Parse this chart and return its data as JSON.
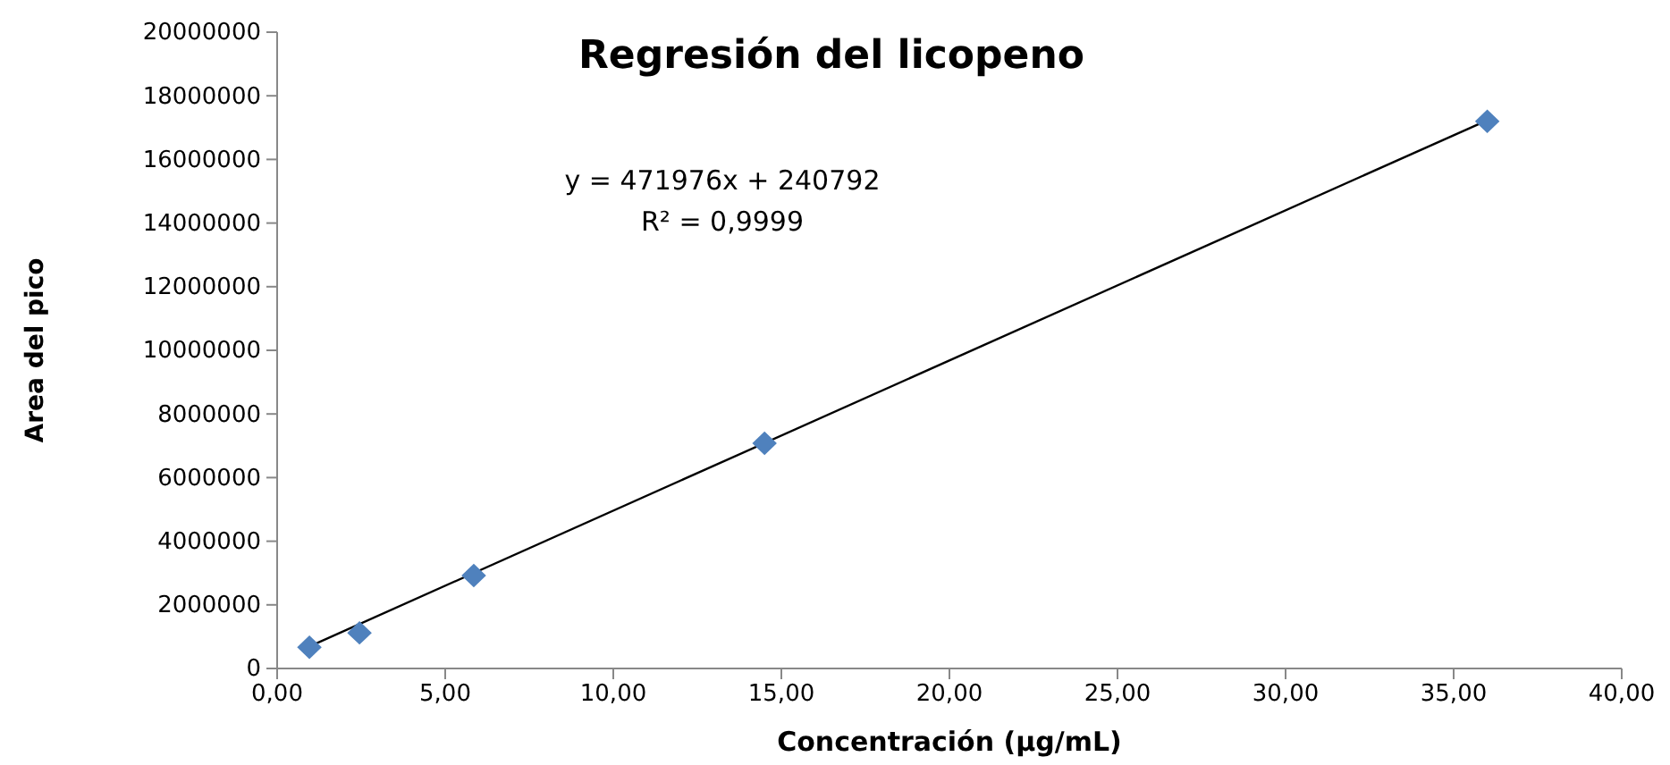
{
  "chart_data": {
    "type": "scatter",
    "title": "Regresión del licopeno",
    "xlabel": "Concentración (µg/mL)",
    "ylabel": "Area del pico",
    "annotations": [
      "y = 471976x + 240792",
      "R² = 0,9999"
    ],
    "grid": false,
    "series": [
      {
        "marker": "diamond",
        "color": "#4f81bd",
        "x": [
          0.96,
          2.45,
          5.85,
          14.5,
          36.0
        ],
        "values": [
          670000,
          1120000,
          2920000,
          7080000,
          17200000
        ]
      },
      {
        "type": "line",
        "color": "#000000",
        "x": [
          0.96,
          36.0
        ],
        "values": [
          694000,
          17232000
        ]
      }
    ],
    "xlim": [
      0,
      40
    ],
    "ylim": [
      0,
      20000000
    ],
    "xticks": [
      {
        "value": 0,
        "label": "0,00"
      },
      {
        "value": 5,
        "label": "5,00"
      },
      {
        "value": 10,
        "label": "10,00"
      },
      {
        "value": 15,
        "label": "15,00"
      },
      {
        "value": 20,
        "label": "20,00"
      },
      {
        "value": 25,
        "label": "25,00"
      },
      {
        "value": 30,
        "label": "30,00"
      },
      {
        "value": 35,
        "label": "35,00"
      },
      {
        "value": 40,
        "label": "40,00"
      }
    ],
    "yticks": [
      0,
      2000000,
      4000000,
      6000000,
      8000000,
      10000000,
      12000000,
      14000000,
      16000000,
      18000000,
      20000000
    ]
  }
}
